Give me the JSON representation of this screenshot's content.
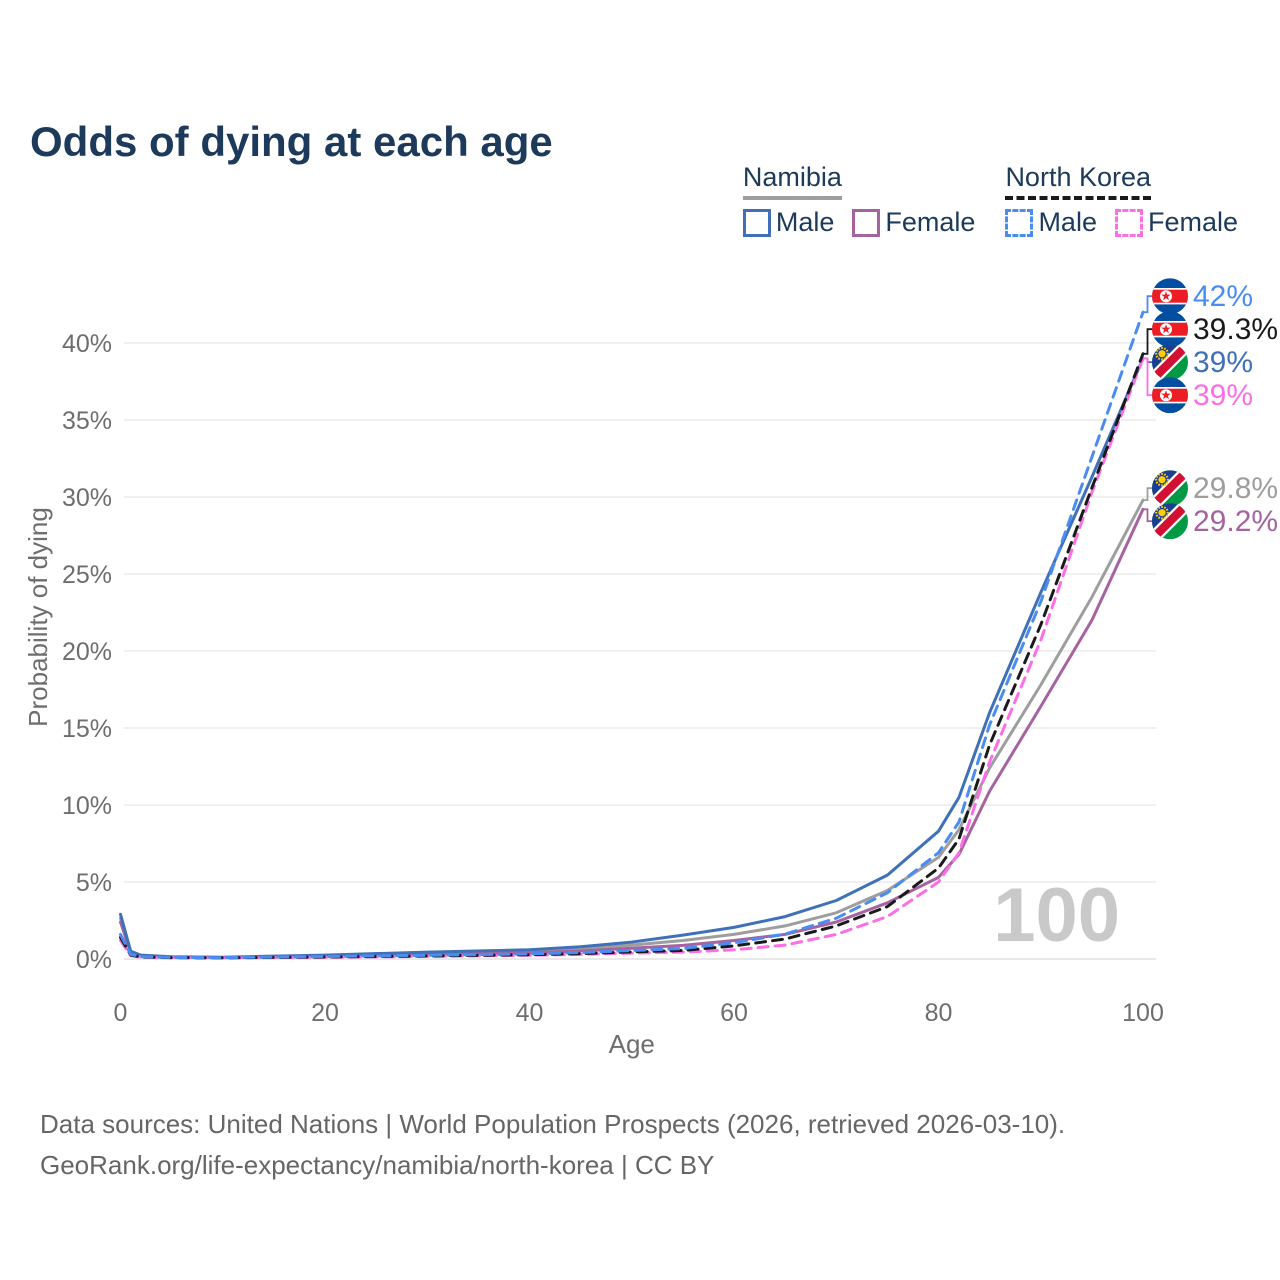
{
  "title": "Odds of dying at each age",
  "legend": {
    "groups": [
      {
        "name": "Namibia",
        "underline_style": "solid",
        "underline_color": "#9e9e9e",
        "items": [
          {
            "label": "Male",
            "color": "#4071b8",
            "dash": false
          },
          {
            "label": "Female",
            "color": "#a5639f",
            "dash": false
          }
        ]
      },
      {
        "name": "North Korea",
        "underline_style": "dashed",
        "underline_color": "#1a1a1a",
        "items": [
          {
            "label": "Male",
            "color": "#4a8cf0",
            "dash": true
          },
          {
            "label": "Female",
            "color": "#fb6ee6",
            "dash": true
          }
        ]
      }
    ]
  },
  "chart_data": {
    "type": "line",
    "title": "Odds of dying at each age",
    "xlabel": "Age",
    "ylabel": "Probability of dying",
    "xlim": [
      0,
      100
    ],
    "ylim": [
      0,
      43
    ],
    "grid": true,
    "watermark": "100",
    "x_ticks": [
      {
        "value": 0,
        "label": "0"
      },
      {
        "value": 20,
        "label": "20"
      },
      {
        "value": 40,
        "label": "40"
      },
      {
        "value": 60,
        "label": "60"
      },
      {
        "value": 80,
        "label": "80"
      },
      {
        "value": 100,
        "label": "100"
      }
    ],
    "y_ticks": [
      {
        "value": 0,
        "label": "0%"
      },
      {
        "value": 5,
        "label": "5%"
      },
      {
        "value": 10,
        "label": "10%"
      },
      {
        "value": 15,
        "label": "15%"
      },
      {
        "value": 20,
        "label": "20%"
      },
      {
        "value": 25,
        "label": "25%"
      },
      {
        "value": 30,
        "label": "30%"
      },
      {
        "value": 35,
        "label": "35%"
      },
      {
        "value": 40,
        "label": "40%"
      }
    ],
    "x": [
      0,
      1,
      2,
      5,
      10,
      20,
      30,
      40,
      45,
      50,
      55,
      60,
      65,
      70,
      75,
      80,
      82,
      85,
      90,
      95,
      100
    ],
    "series": [
      {
        "name": "Namibia",
        "sex": "total",
        "color": "#9e9e9e",
        "dash": false,
        "values": [
          2.65,
          0.45,
          0.22,
          0.13,
          0.1,
          0.2,
          0.35,
          0.5,
          0.65,
          0.9,
          1.2,
          1.6,
          2.15,
          3.0,
          4.45,
          6.6,
          8.4,
          12.4,
          17.8,
          23.5,
          29.8
        ]
      },
      {
        "name": "Namibia Female",
        "sex": "female",
        "color": "#a5639f",
        "dash": false,
        "values": [
          2.4,
          0.4,
          0.2,
          0.12,
          0.09,
          0.16,
          0.27,
          0.4,
          0.52,
          0.7,
          0.88,
          1.2,
          1.6,
          2.4,
          3.65,
          5.3,
          6.8,
          10.9,
          16.4,
          22.0,
          29.2
        ]
      },
      {
        "name": "Namibia Male",
        "sex": "male",
        "color": "#4071b8",
        "dash": false,
        "values": [
          2.9,
          0.5,
          0.25,
          0.15,
          0.12,
          0.25,
          0.45,
          0.6,
          0.8,
          1.1,
          1.55,
          2.05,
          2.75,
          3.8,
          5.45,
          8.3,
          10.5,
          16.0,
          23.8,
          31.3,
          39.0
        ]
      },
      {
        "name": "North Korea Female",
        "sex": "female",
        "color": "#fb6ee6",
        "dash": true,
        "values": [
          1.2,
          0.22,
          0.12,
          0.08,
          0.07,
          0.11,
          0.17,
          0.24,
          0.3,
          0.38,
          0.45,
          0.6,
          0.9,
          1.6,
          2.75,
          5.0,
          6.9,
          12.8,
          20.7,
          30.3,
          39.0
        ]
      },
      {
        "name": "North Korea",
        "sex": "total",
        "color": "#1a1a1a",
        "dash": true,
        "values": [
          1.4,
          0.26,
          0.13,
          0.09,
          0.08,
          0.13,
          0.2,
          0.28,
          0.35,
          0.46,
          0.55,
          0.85,
          1.3,
          2.15,
          3.4,
          5.9,
          7.8,
          13.9,
          21.7,
          30.6,
          39.3
        ]
      },
      {
        "name": "North Korea Male",
        "sex": "male",
        "color": "#4a8cf0",
        "dash": true,
        "values": [
          1.6,
          0.3,
          0.15,
          0.1,
          0.09,
          0.16,
          0.24,
          0.33,
          0.42,
          0.55,
          0.68,
          1.05,
          1.62,
          2.65,
          4.3,
          6.9,
          8.9,
          15.2,
          23.2,
          32.6,
          42.0
        ]
      }
    ],
    "end_labels": [
      {
        "series": 5,
        "text": "42%",
        "flag": "nk"
      },
      {
        "series": 4,
        "text": "39.3%",
        "flag": "nk"
      },
      {
        "series": 2,
        "text": "39%",
        "flag": "na"
      },
      {
        "series": 3,
        "text": "39%",
        "flag": "nk"
      },
      {
        "series": 0,
        "text": "29.8%",
        "flag": "na"
      },
      {
        "series": 1,
        "text": "29.2%",
        "flag": "na"
      }
    ],
    "legend_position": "top-right"
  },
  "footer": {
    "line1": "Data sources: United Nations | World Population Prospects (2026, retrieved 2026-03-10).",
    "line2": "GeoRank.org/life-expectancy/namibia/north-korea | CC BY"
  }
}
